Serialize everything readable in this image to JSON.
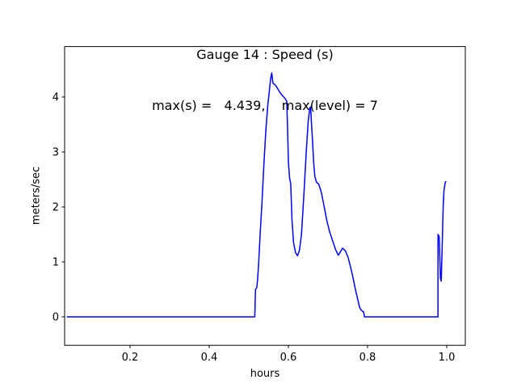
{
  "chart_data": {
    "type": "line",
    "title": "Gauge 14 : Speed (s)",
    "subtitle": "max(s) =   4.439,    max(level) = 7",
    "xlabel": "hours",
    "ylabel": "meters/sec",
    "max_s": 4.439,
    "max_level": 7,
    "grid": false,
    "legend": "none",
    "line_color": "#0000ff",
    "axis_color": "#000000",
    "xlim": [
      0.0347,
      1.0469
    ],
    "ylim": [
      -0.518,
      4.918
    ],
    "xticks": [
      0.2,
      0.4,
      0.6,
      0.8,
      1.0
    ],
    "xtick_labels": [
      "0.2",
      "0.4",
      "0.6",
      "0.8",
      "1.0"
    ],
    "yticks": [
      0,
      1,
      2,
      3,
      4
    ],
    "ytick_labels": [
      "0",
      "1",
      "2",
      "3",
      "4"
    ],
    "series": [
      {
        "name": "speed",
        "units": "meters/sec",
        "x_units": "hours",
        "points": [
          [
            0.04,
            0.0
          ],
          [
            0.515,
            0.0
          ],
          [
            0.517,
            0.5
          ],
          [
            0.52,
            0.53
          ],
          [
            0.522,
            0.66
          ],
          [
            0.525,
            1.0
          ],
          [
            0.529,
            1.55
          ],
          [
            0.533,
            2.05
          ],
          [
            0.538,
            2.75
          ],
          [
            0.543,
            3.4
          ],
          [
            0.548,
            3.85
          ],
          [
            0.552,
            4.12
          ],
          [
            0.555,
            4.33
          ],
          [
            0.558,
            4.439
          ],
          [
            0.561,
            4.25
          ],
          [
            0.565,
            4.23
          ],
          [
            0.569,
            4.2
          ],
          [
            0.573,
            4.15
          ],
          [
            0.578,
            4.09
          ],
          [
            0.583,
            4.04
          ],
          [
            0.588,
            4.0
          ],
          [
            0.592,
            3.97
          ],
          [
            0.596,
            3.92
          ],
          [
            0.598,
            3.42
          ],
          [
            0.6,
            2.82
          ],
          [
            0.603,
            2.52
          ],
          [
            0.606,
            2.42
          ],
          [
            0.609,
            1.78
          ],
          [
            0.613,
            1.35
          ],
          [
            0.618,
            1.17
          ],
          [
            0.623,
            1.11
          ],
          [
            0.628,
            1.21
          ],
          [
            0.633,
            1.5
          ],
          [
            0.639,
            2.2
          ],
          [
            0.645,
            3.0
          ],
          [
            0.65,
            3.55
          ],
          [
            0.654,
            3.8
          ],
          [
            0.656,
            3.82
          ],
          [
            0.658,
            3.57
          ],
          [
            0.661,
            3.2
          ],
          [
            0.664,
            2.78
          ],
          [
            0.667,
            2.55
          ],
          [
            0.671,
            2.45
          ],
          [
            0.677,
            2.41
          ],
          [
            0.683,
            2.27
          ],
          [
            0.69,
            2.02
          ],
          [
            0.697,
            1.76
          ],
          [
            0.704,
            1.55
          ],
          [
            0.712,
            1.38
          ],
          [
            0.719,
            1.23
          ],
          [
            0.726,
            1.12
          ],
          [
            0.731,
            1.18
          ],
          [
            0.737,
            1.25
          ],
          [
            0.744,
            1.2
          ],
          [
            0.751,
            1.08
          ],
          [
            0.757,
            0.91
          ],
          [
            0.763,
            0.72
          ],
          [
            0.769,
            0.51
          ],
          [
            0.775,
            0.32
          ],
          [
            0.78,
            0.17
          ],
          [
            0.784,
            0.12
          ],
          [
            0.79,
            0.09
          ],
          [
            0.792,
            0.0
          ],
          [
            0.978,
            0.0
          ],
          [
            0.978,
            1.5
          ],
          [
            0.981,
            1.46
          ],
          [
            0.984,
            0.7
          ],
          [
            0.986,
            0.65
          ],
          [
            0.989,
            1.4
          ],
          [
            0.991,
            2.0
          ],
          [
            0.993,
            2.3
          ],
          [
            0.996,
            2.44
          ],
          [
            0.998,
            2.47
          ]
        ]
      }
    ]
  }
}
